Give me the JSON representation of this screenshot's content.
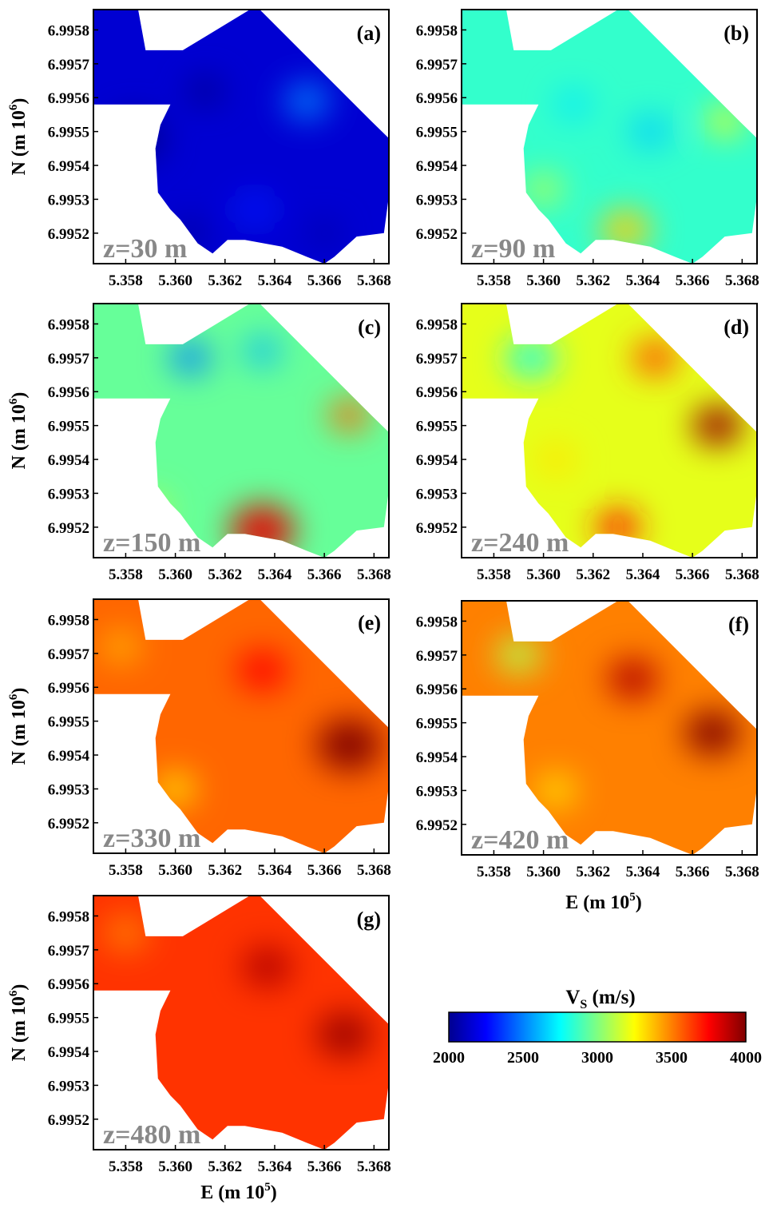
{
  "chart_data": {
    "type": "heatmap",
    "quantity": "V_S (m/s)",
    "colorbar": {
      "title_main": "V",
      "title_sub": "S",
      "title_unit": " (m/s)",
      "range": [
        2000,
        4000
      ],
      "ticks": [
        "2000",
        "2500",
        "3000",
        "3500",
        "4000"
      ],
      "colormap": "jet",
      "colors": [
        "#00008f",
        "#0000ff",
        "#0080ff",
        "#00ffff",
        "#80ff80",
        "#ffff00",
        "#ff8000",
        "#ff0000",
        "#800000"
      ]
    },
    "x_axis_label": {
      "main": "E (m 10",
      "sup": "5",
      "end": ")"
    },
    "y_axis_label": {
      "main": "N (m 10",
      "sup": "6",
      "end": ")"
    },
    "xticks": [
      "5.358",
      "5.360",
      "5.362",
      "5.364",
      "5.366",
      "5.368"
    ],
    "xtick_values": [
      5.358,
      5.36,
      5.362,
      5.364,
      5.366,
      5.368
    ],
    "xlim": [
      5.3567,
      5.3686
    ],
    "yticks": [
      "6.9958",
      "6.9957",
      "6.9956",
      "6.9955",
      "6.9954",
      "6.9953",
      "6.9952"
    ],
    "ytick_values": [
      6.9958,
      6.9957,
      6.9956,
      6.9955,
      6.9954,
      6.9953,
      6.9952
    ],
    "ylim": [
      6.99511,
      6.99586
    ],
    "panels": [
      {
        "label": "(a)",
        "depth": "z=30 m",
        "mean_vs": 2150,
        "features": [
          {
            "x": 5.3584,
            "y": 6.99548,
            "v": 2000,
            "r": 0.0012
          },
          {
            "x": 5.3612,
            "y": 6.99562,
            "v": 2000,
            "r": 0.0007
          },
          {
            "x": 5.3632,
            "y": 6.99527,
            "v": 2300,
            "r": 0.0008
          },
          {
            "x": 5.3653,
            "y": 6.99559,
            "v": 2500,
            "r": 0.0009
          },
          {
            "x": 5.3606,
            "y": 6.9952,
            "v": 1950,
            "r": 0.0006
          },
          {
            "x": 5.366,
            "y": 6.9952,
            "v": 2050,
            "r": 0.0006
          }
        ]
      },
      {
        "label": "(b)",
        "depth": "z=90 m",
        "mean_vs": 2850,
        "features": [
          {
            "x": 5.3633,
            "y": 6.99521,
            "v": 3350,
            "r": 0.001
          },
          {
            "x": 5.3673,
            "y": 6.99553,
            "v": 3250,
            "r": 0.0007
          },
          {
            "x": 5.3643,
            "y": 6.9955,
            "v": 2650,
            "r": 0.0008
          },
          {
            "x": 5.36,
            "y": 6.99533,
            "v": 3100,
            "r": 0.0008
          },
          {
            "x": 5.3612,
            "y": 6.99558,
            "v": 2700,
            "r": 0.0007
          }
        ]
      },
      {
        "label": "(c)",
        "depth": "z=150 m",
        "mean_vs": 2950,
        "features": [
          {
            "x": 5.3635,
            "y": 6.99519,
            "v": 3800,
            "r": 0.0013
          },
          {
            "x": 5.367,
            "y": 6.99553,
            "v": 3550,
            "r": 0.0008
          },
          {
            "x": 5.3606,
            "y": 6.9957,
            "v": 2500,
            "r": 0.0008
          },
          {
            "x": 5.3635,
            "y": 6.99572,
            "v": 2600,
            "r": 0.0007
          },
          {
            "x": 5.359,
            "y": 6.99525,
            "v": 3100,
            "r": 0.0008
          }
        ]
      },
      {
        "label": "(d)",
        "depth": "z=240 m",
        "mean_vs": 3200,
        "features": [
          {
            "x": 5.367,
            "y": 6.9955,
            "v": 3950,
            "r": 0.001
          },
          {
            "x": 5.3645,
            "y": 6.9957,
            "v": 3600,
            "r": 0.0009
          },
          {
            "x": 5.363,
            "y": 6.9952,
            "v": 3700,
            "r": 0.0009
          },
          {
            "x": 5.3595,
            "y": 6.9957,
            "v": 2800,
            "r": 0.001
          },
          {
            "x": 5.3605,
            "y": 6.9954,
            "v": 3300,
            "r": 0.0008
          }
        ]
      },
      {
        "label": "(e)",
        "depth": "z=330 m",
        "mean_vs": 3550,
        "features": [
          {
            "x": 5.367,
            "y": 6.99543,
            "v": 4000,
            "r": 0.0013
          },
          {
            "x": 5.3578,
            "y": 6.99572,
            "v": 3400,
            "r": 0.0008
          },
          {
            "x": 5.3635,
            "y": 6.99565,
            "v": 3750,
            "r": 0.001
          },
          {
            "x": 5.36,
            "y": 6.9953,
            "v": 3300,
            "r": 0.0008
          }
        ]
      },
      {
        "label": "(f)",
        "depth": "z=420 m",
        "mean_vs": 3500,
        "features": [
          {
            "x": 5.3668,
            "y": 6.99547,
            "v": 4000,
            "r": 0.0011
          },
          {
            "x": 5.3636,
            "y": 6.99563,
            "v": 3900,
            "r": 0.001
          },
          {
            "x": 5.359,
            "y": 6.9957,
            "v": 3100,
            "r": 0.0009
          },
          {
            "x": 5.3605,
            "y": 6.9953,
            "v": 3300,
            "r": 0.0008
          }
        ]
      },
      {
        "label": "(g)",
        "depth": "z=480 m",
        "mean_vs": 3650,
        "features": [
          {
            "x": 5.3668,
            "y": 6.99545,
            "v": 3950,
            "r": 0.0011
          },
          {
            "x": 5.3637,
            "y": 6.99565,
            "v": 3900,
            "r": 0.001
          },
          {
            "x": 5.358,
            "y": 6.99575,
            "v": 3500,
            "r": 0.0009
          }
        ]
      }
    ],
    "survey_outline": [
      [
        5.3567,
        6.99586
      ],
      [
        5.3585,
        6.99586
      ],
      [
        5.3588,
        6.99574
      ],
      [
        5.3603,
        6.99574
      ],
      [
        5.363,
        6.99586
      ],
      [
        5.3634,
        6.99586
      ],
      [
        5.3679,
        6.99553
      ],
      [
        5.3686,
        6.99548
      ],
      [
        5.3686,
        6.99531
      ],
      [
        5.3684,
        6.9952
      ],
      [
        5.3673,
        6.99519
      ],
      [
        5.3664,
        6.99513
      ],
      [
        5.366,
        6.99511
      ],
      [
        5.3653,
        6.99513
      ],
      [
        5.3643,
        6.99516
      ],
      [
        5.3628,
        6.99518
      ],
      [
        5.3621,
        6.99518
      ],
      [
        5.3615,
        6.99514
      ],
      [
        5.3609,
        6.99517
      ],
      [
        5.3602,
        6.99524
      ],
      [
        5.3598,
        6.99527
      ],
      [
        5.3593,
        6.99532
      ],
      [
        5.3592,
        6.99545
      ],
      [
        5.3594,
        6.99552
      ],
      [
        5.3598,
        6.99558
      ],
      [
        5.3567,
        6.99558
      ]
    ]
  }
}
